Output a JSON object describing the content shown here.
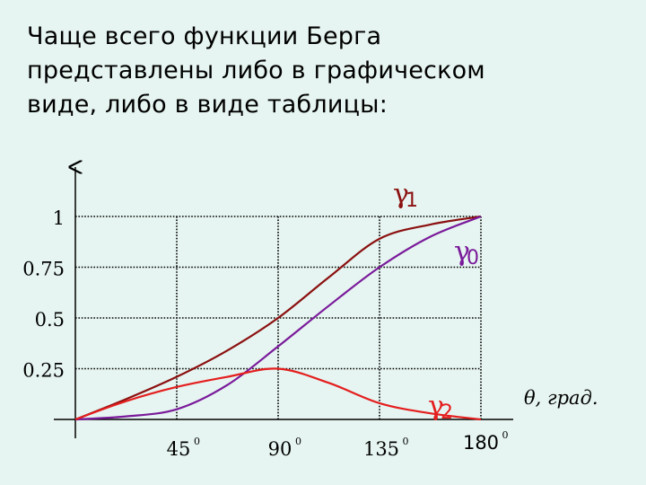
{
  "slide": {
    "text": "Чаще всего функции Берга\nпредставлены либо в графическом\nвиде, либо в виде таблицы:"
  },
  "chart_data": {
    "type": "line",
    "xlabel": "θ, град.",
    "ylabel": "",
    "xlim": [
      0,
      180
    ],
    "ylim": [
      0,
      1
    ],
    "grid": true,
    "x_ticks": [
      {
        "value": 45,
        "label": "45",
        "sup": "0"
      },
      {
        "value": 90,
        "label": "90",
        "sup": "0"
      },
      {
        "value": 135,
        "label": "135",
        "sup": "0"
      },
      {
        "value": 180,
        "label": "180",
        "sup": "0"
      }
    ],
    "y_ticks": [
      {
        "value": 0.25,
        "label": "0.25"
      },
      {
        "value": 0.5,
        "label": "0.5"
      },
      {
        "value": 0.75,
        "label": "0.75"
      },
      {
        "value": 1,
        "label": "1"
      }
    ],
    "series": [
      {
        "symbol": "γ",
        "subscript": "1",
        "color": "#8b1010",
        "points": [
          [
            0,
            0
          ],
          [
            22.5,
            0.1
          ],
          [
            45,
            0.21
          ],
          [
            67.5,
            0.34
          ],
          [
            90,
            0.5
          ],
          [
            112.5,
            0.7
          ],
          [
            135,
            0.89
          ],
          [
            157.5,
            0.96
          ],
          [
            180,
            1.0
          ]
        ]
      },
      {
        "symbol": "γ",
        "subscript": "0",
        "color": "#7a1a9a",
        "points": [
          [
            0,
            0
          ],
          [
            22.5,
            0.015
          ],
          [
            45,
            0.05
          ],
          [
            67.5,
            0.17
          ],
          [
            90,
            0.36
          ],
          [
            112.5,
            0.56
          ],
          [
            135,
            0.75
          ],
          [
            157.5,
            0.9
          ],
          [
            180,
            1.0
          ]
        ]
      },
      {
        "symbol": "γ",
        "subscript": "2",
        "color": "#e41e1e",
        "points": [
          [
            0,
            0
          ],
          [
            22.5,
            0.09
          ],
          [
            45,
            0.16
          ],
          [
            67.5,
            0.21
          ],
          [
            90,
            0.25
          ],
          [
            112.5,
            0.18
          ],
          [
            135,
            0.08
          ],
          [
            157.5,
            0.03
          ],
          [
            180,
            0.0
          ]
        ]
      }
    ]
  }
}
